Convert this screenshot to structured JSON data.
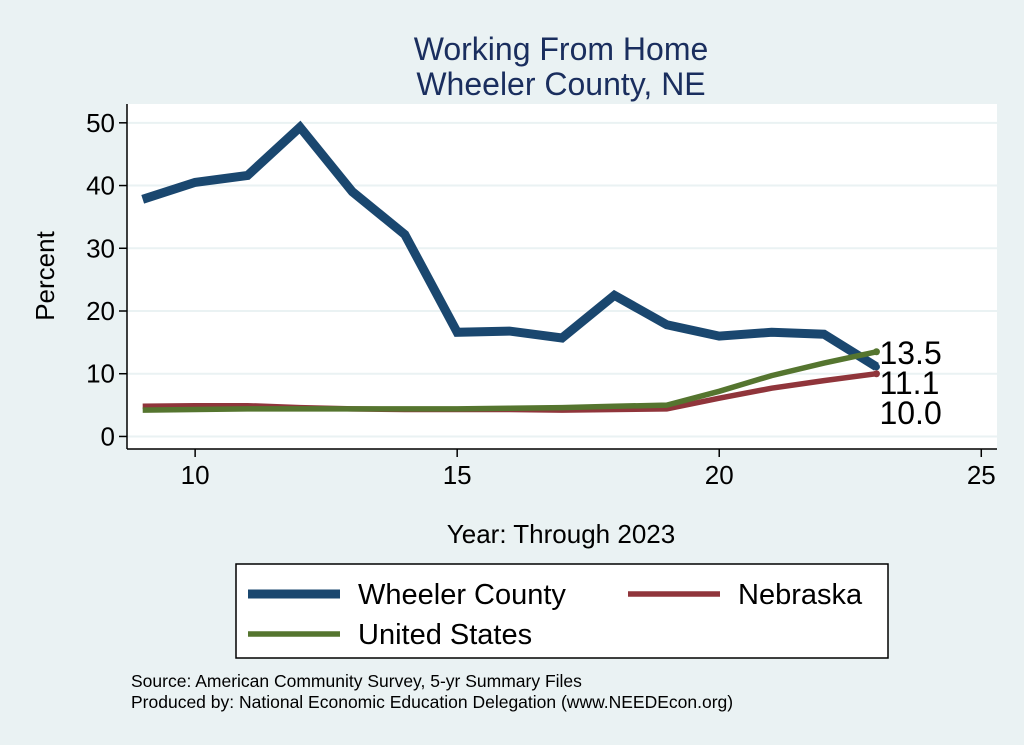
{
  "chart_data": {
    "type": "line",
    "title": [
      "Working From Home",
      "Wheeler County, NE"
    ],
    "xlabel": "Year: Through 2023",
    "ylabel": "Percent",
    "xlim": [
      8.7,
      25.3
    ],
    "ylim": [
      -2,
      53
    ],
    "xticks": [
      10,
      15,
      20,
      25
    ],
    "yticks": [
      0,
      10,
      20,
      30,
      40,
      50
    ],
    "grid": true,
    "x": [
      9,
      10,
      11,
      12,
      13,
      14,
      15,
      16,
      17,
      18,
      19,
      20,
      21,
      22,
      23
    ],
    "series": [
      {
        "name": "Wheeler County",
        "color": "#1a476f",
        "values": [
          37.8,
          40.5,
          41.6,
          49.3,
          39.0,
          32.2,
          16.6,
          16.8,
          15.7,
          22.5,
          17.8,
          16.0,
          16.6,
          16.3,
          11.1
        ],
        "end_label": "11.1"
      },
      {
        "name": "Nebraska",
        "color": "#90353b",
        "values": [
          4.8,
          4.9,
          4.9,
          4.6,
          4.4,
          4.3,
          4.3,
          4.3,
          4.2,
          4.3,
          4.4,
          6.1,
          7.7,
          8.9,
          10.0
        ],
        "end_label": "10.0"
      },
      {
        "name": "United States",
        "color": "#55752f",
        "values": [
          4.2,
          4.3,
          4.4,
          4.4,
          4.4,
          4.4,
          4.4,
          4.5,
          4.6,
          4.8,
          5.0,
          7.2,
          9.7,
          11.7,
          13.5
        ],
        "end_label": "13.5"
      }
    ],
    "legend": {
      "placement": "bottom",
      "entries": [
        "Wheeler County",
        "Nebraska",
        "United States"
      ]
    },
    "notes": [
      "Source: American Community Survey, 5-yr Summary Files",
      "Produced by: National Economic Education Delegation (www.NEEDEcon.org)"
    ]
  }
}
